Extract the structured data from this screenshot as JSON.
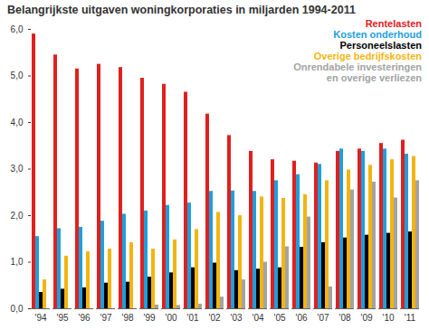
{
  "chart_data": {
    "type": "bar",
    "title": "Belangrijkste uitgaven woningkorporaties in miljarden 1994-2011",
    "categories": [
      "'94",
      "'95",
      "'96",
      "'97",
      "'98",
      "'99",
      "'00",
      "'01",
      "'02",
      "'03",
      "'04",
      "'05",
      "'06",
      "'07",
      "'08",
      "'09",
      "'10",
      "'11"
    ],
    "series": [
      {
        "name": "Rentelasten",
        "color": "#e0201e",
        "values": [
          5.9,
          5.45,
          5.15,
          5.25,
          5.18,
          4.95,
          4.82,
          4.65,
          4.18,
          3.72,
          3.38,
          3.2,
          3.17,
          3.13,
          3.38,
          3.43,
          3.55,
          3.62
        ]
      },
      {
        "name": "Kosten onderhoud",
        "color": "#1e9fdb",
        "values": [
          1.55,
          1.72,
          1.75,
          1.88,
          2.03,
          2.1,
          2.22,
          2.27,
          2.52,
          2.53,
          2.52,
          2.75,
          2.88,
          3.1,
          3.43,
          3.38,
          3.43,
          3.32
        ]
      },
      {
        "name": "Personeelslasten",
        "color": "#000000",
        "values": [
          0.35,
          0.42,
          0.45,
          0.55,
          0.57,
          0.68,
          0.77,
          0.88,
          0.98,
          0.82,
          0.85,
          0.88,
          1.32,
          1.42,
          1.52,
          1.58,
          1.62,
          1.65
        ]
      },
      {
        "name": "Overige bedrijfskosten",
        "color": "#f2b50f",
        "values": [
          0.62,
          1.13,
          1.22,
          1.28,
          1.42,
          1.28,
          1.48,
          1.7,
          2.07,
          2.0,
          2.4,
          2.37,
          2.45,
          2.75,
          2.98,
          3.08,
          3.2,
          3.27
        ]
      },
      {
        "name": "Onrendabele investeringen en overige verliezen",
        "color": "#a3a3a3",
        "values": [
          0,
          0,
          0,
          0,
          0,
          0.08,
          0.07,
          0.1,
          0.25,
          0.62,
          1.0,
          1.33,
          1.97,
          0.47,
          2.55,
          2.72,
          2.38,
          2.75
        ]
      }
    ],
    "ylim": [
      0,
      6
    ],
    "yticks": [
      {
        "value": 0,
        "label": "0,0"
      },
      {
        "value": 1,
        "label": "1,0"
      },
      {
        "value": 2,
        "label": "2,0"
      },
      {
        "value": 3,
        "label": "3,0"
      },
      {
        "value": 4,
        "label": "4,0"
      },
      {
        "value": 5,
        "label": "5,0"
      },
      {
        "value": 6,
        "label": "6,0"
      }
    ],
    "legend": "top-right",
    "grid": false
  }
}
